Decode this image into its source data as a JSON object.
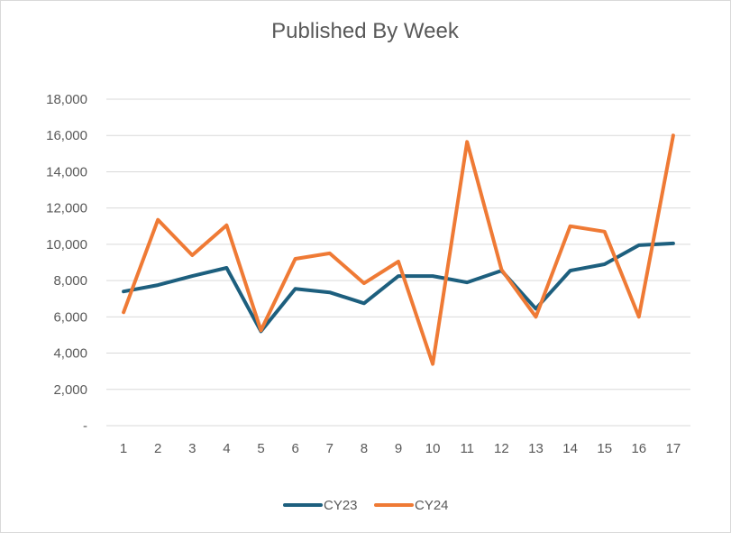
{
  "chart_data": {
    "type": "line",
    "title": "Published By Week",
    "xlabel": "",
    "ylabel": "",
    "categories": [
      "1",
      "2",
      "3",
      "4",
      "5",
      "6",
      "7",
      "8",
      "9",
      "10",
      "11",
      "12",
      "13",
      "14",
      "15",
      "16",
      "17"
    ],
    "ylim": [
      0,
      18000
    ],
    "yticks": [
      0,
      2000,
      4000,
      6000,
      8000,
      10000,
      12000,
      14000,
      16000,
      18000
    ],
    "ytick_labels": [
      "-",
      "2,000",
      "4,000",
      "6,000",
      "8,000",
      "10,000",
      "12,000",
      "14,000",
      "16,000",
      "18,000"
    ],
    "grid": true,
    "legend_position": "bottom",
    "series": [
      {
        "name": "CY23",
        "color": "#1d5f7e",
        "values": [
          7400,
          7750,
          8250,
          8700,
          5200,
          7550,
          7350,
          6750,
          8250,
          8250,
          7900,
          8550,
          6450,
          8550,
          8900,
          9950,
          10050
        ]
      },
      {
        "name": "CY24",
        "color": "#ef7a35",
        "values": [
          6250,
          11350,
          9400,
          11050,
          5250,
          9200,
          9500,
          7850,
          9050,
          3400,
          15650,
          8600,
          6000,
          11000,
          10700,
          6000,
          16000
        ]
      }
    ]
  }
}
